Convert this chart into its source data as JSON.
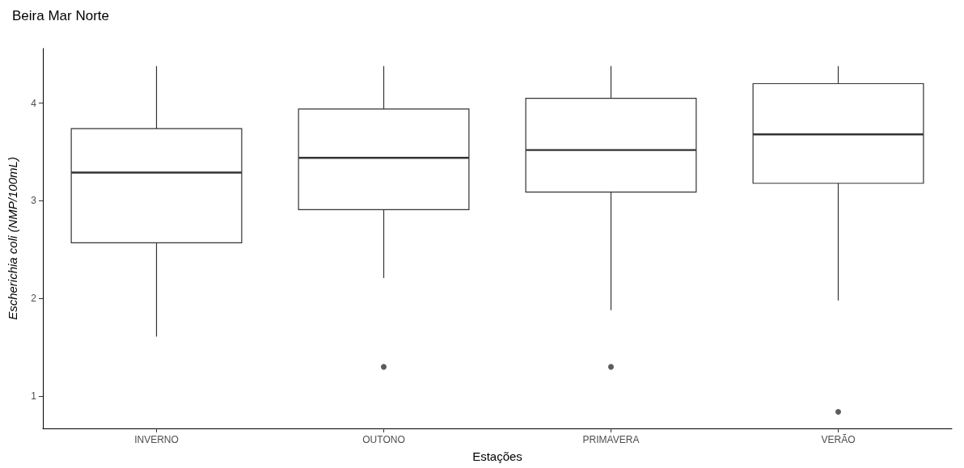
{
  "chart_data": {
    "type": "box",
    "title": "Beira Mar Norte",
    "xlabel": "Estações",
    "ylabel": "Escherichia coli (NMP/100mL)",
    "categories": [
      "INVERNO",
      "OUTONO",
      "PRIMAVERA",
      "VERÃO"
    ],
    "boxes": [
      {
        "low": 1.61,
        "q1": 2.57,
        "median": 3.29,
        "q3": 3.74,
        "high": 4.38
      },
      {
        "low": 2.21,
        "q1": 2.91,
        "median": 3.44,
        "q3": 3.94,
        "high": 4.38,
        "outliers": [
          1.3
        ]
      },
      {
        "low": 1.88,
        "q1": 3.09,
        "median": 3.52,
        "q3": 4.05,
        "high": 4.38,
        "outliers": [
          1.3
        ]
      },
      {
        "low": 1.98,
        "q1": 3.18,
        "median": 3.68,
        "q3": 4.2,
        "high": 4.38,
        "outliers": [
          0.84
        ]
      }
    ],
    "color": "#333333",
    "ylim": [
      0.67,
      4.56
    ],
    "yticks": [
      1,
      2,
      3,
      4
    ],
    "grid": false
  }
}
